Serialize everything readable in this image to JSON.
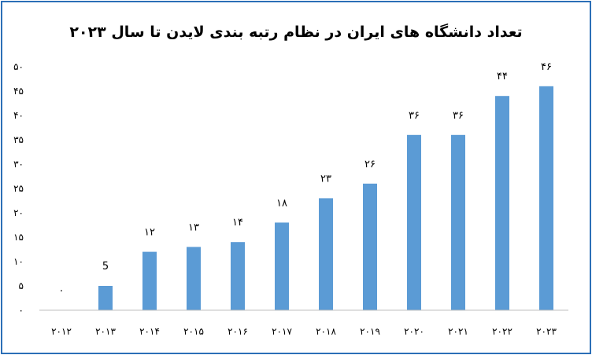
{
  "chart_data": {
    "type": "bar",
    "title": "تعداد دانشگاه های ایران در نظام رتبه بندی لایدن تا سال ۲۰۲۳",
    "xlabel": "",
    "ylabel": "",
    "categories": [
      "۲۰۱۲",
      "۲۰۱۳",
      "۲۰۱۴",
      "۲۰۱۵",
      "۲۰۱۶",
      "۲۰۱۷",
      "۲۰۱۸",
      "۲۰۱۹",
      "۲۰۲۰",
      "۲۰۲۱",
      "۲۰۲۲",
      "۲۰۲۳"
    ],
    "values": [
      0,
      5,
      12,
      13,
      14,
      18,
      23,
      26,
      36,
      36,
      44,
      46
    ],
    "value_labels": [
      "۰",
      "5",
      "۱۲",
      "۱۳",
      "۱۴",
      "۱۸",
      "۲۳",
      "۲۶",
      "۳۶",
      "۳۶",
      "۴۴",
      "۴۶"
    ],
    "ylim": [
      0,
      50
    ],
    "yticks": [
      0,
      5,
      10,
      15,
      20,
      25,
      30,
      35,
      40,
      45,
      50
    ],
    "ytick_labels": [
      "۰",
      "۵",
      "۱۰",
      "۱۵",
      "۲۰",
      "۲۵",
      "۳۰",
      "۳۵",
      "۴۰",
      "۴۵",
      "۵۰"
    ],
    "bar_color": "#5b9bd5",
    "grid": false,
    "legend": "none"
  }
}
